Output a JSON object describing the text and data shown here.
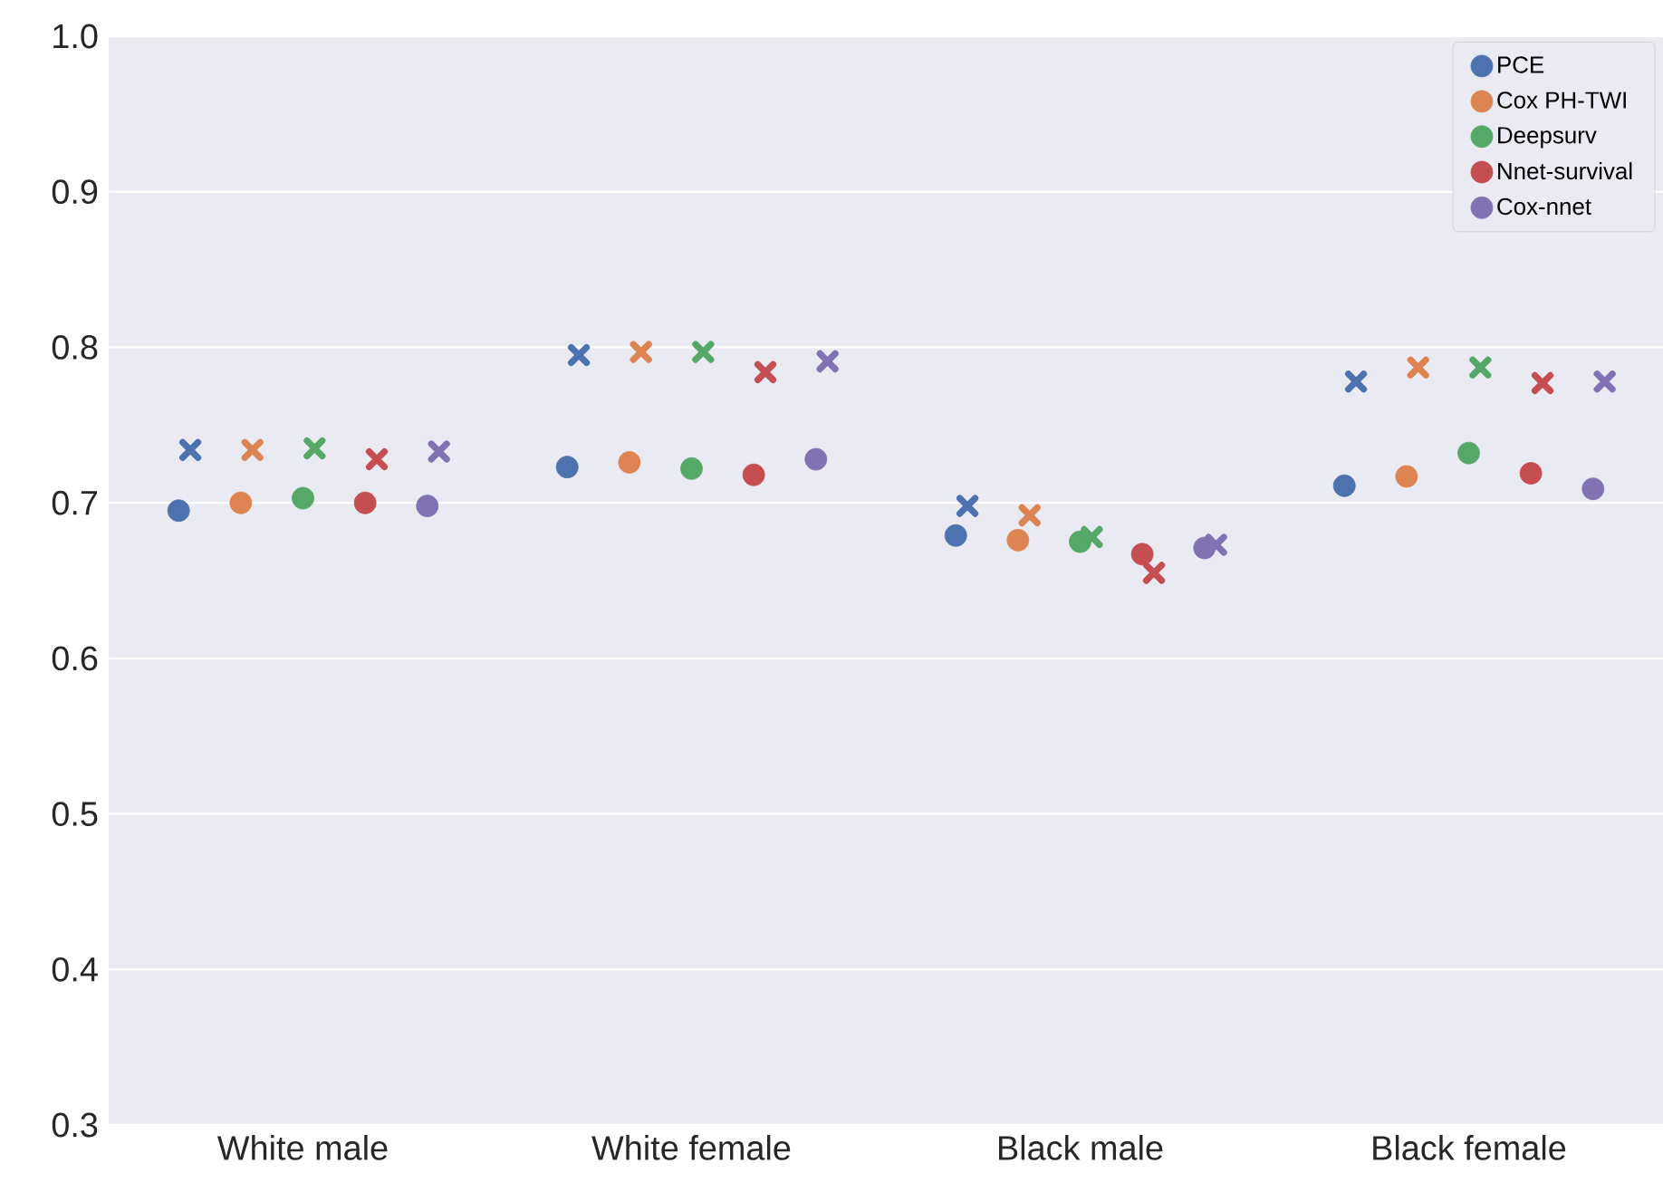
{
  "chart_data": {
    "type": "scatter",
    "categories": [
      "White male",
      "White female",
      "Black male",
      "Black female"
    ],
    "series": [
      {
        "name": "PCE",
        "color": "#4c72b0",
        "marker": "circle",
        "values": [
          0.695,
          0.723,
          0.679,
          0.711
        ]
      },
      {
        "name": "Cox PH-TWI",
        "color": "#dd8452",
        "marker": "circle",
        "values": [
          0.7,
          0.726,
          0.676,
          0.717
        ]
      },
      {
        "name": "Deepsurv",
        "color": "#55a868",
        "marker": "circle",
        "values": [
          0.703,
          0.722,
          0.675,
          0.732
        ]
      },
      {
        "name": "Nnet-survival",
        "color": "#c44e52",
        "marker": "circle",
        "values": [
          0.7,
          0.718,
          0.667,
          0.719
        ]
      },
      {
        "name": "Cox-nnet",
        "color": "#8172b3",
        "marker": "circle",
        "values": [
          0.698,
          0.728,
          0.671,
          0.709
        ]
      },
      {
        "color": "#4c72b0",
        "marker": "cross",
        "values": [
          0.734,
          0.795,
          0.698,
          0.778
        ]
      },
      {
        "color": "#dd8452",
        "marker": "cross",
        "values": [
          0.734,
          0.797,
          0.692,
          0.787
        ]
      },
      {
        "color": "#55a868",
        "marker": "cross",
        "values": [
          0.735,
          0.797,
          0.678,
          0.787
        ]
      },
      {
        "color": "#c44e52",
        "marker": "cross",
        "values": [
          0.728,
          0.784,
          0.655,
          0.777
        ]
      },
      {
        "color": "#8172b3",
        "marker": "cross",
        "values": [
          0.733,
          0.791,
          0.673,
          0.778
        ]
      }
    ],
    "ylim": [
      0.3,
      1.0
    ],
    "yticks": [
      0.3,
      0.4,
      0.5,
      0.6,
      0.7,
      0.8,
      0.9,
      {
        "value": 1.0,
        "label": "1.0"
      }
    ],
    "grid": "y",
    "legend": "top right"
  }
}
